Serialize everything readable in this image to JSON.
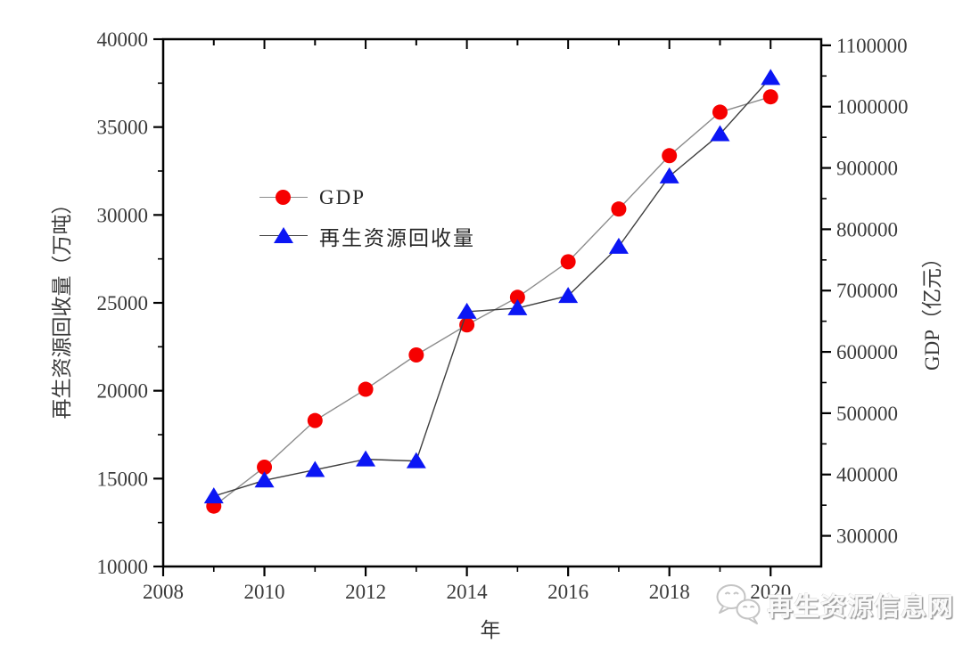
{
  "chart_data": {
    "type": "line",
    "x": [
      2009,
      2010,
      2011,
      2012,
      2013,
      2014,
      2015,
      2016,
      2017,
      2018,
      2019,
      2020
    ],
    "series": [
      {
        "name": "GDP",
        "axis": "right",
        "marker": "circle",
        "marker_color": "#f60000",
        "line_color": "#8c8c8c",
        "values": [
          348500,
          412000,
          488000,
          539000,
          595000,
          644000,
          689000,
          747000,
          833000,
          920000,
          991000,
          1016000
        ]
      },
      {
        "name": "再生资源回收量",
        "axis": "left",
        "marker": "triangle",
        "marker_color": "#0b16f4",
        "line_color": "#3f3f3f",
        "values": [
          14000,
          14900,
          15500,
          16100,
          16000,
          24500,
          24700,
          25400,
          28200,
          32200,
          34600,
          37800
        ]
      }
    ],
    "xlabel": "年",
    "ylabel_left": "再生资源回收量（万吨）",
    "ylabel_right": "GDP（亿元）",
    "x_range": [
      2008,
      2021
    ],
    "x_major_tick_step": 2,
    "x_minor_tick_step": 1,
    "x_tick_labels": [
      "2008",
      "2010",
      "2012",
      "2014",
      "2016",
      "2018",
      "2020"
    ],
    "left_range": [
      10000,
      40000
    ],
    "left_major_step": 5000,
    "left_minor_step": 2500,
    "left_tick_labels": [
      "10000",
      "15000",
      "20000",
      "25000",
      "30000",
      "35000",
      "40000"
    ],
    "right_range": [
      250000,
      1110000
    ],
    "right_major_step": 100000,
    "right_minor_step": 50000,
    "right_tick_labels": [
      "300000",
      "400000",
      "500000",
      "600000",
      "700000",
      "800000",
      "900000",
      "1000000",
      "1100000"
    ],
    "grid": false,
    "legend_position": "inside-upper-left",
    "axis_color": "#000000",
    "tick_label_color": "#3a3a3a"
  },
  "axes": {
    "left": {
      "title": "再生资源回收量（万吨）"
    },
    "right": {
      "title": "GDP（亿元）"
    },
    "bottom": {
      "title": "年"
    }
  },
  "legend": {
    "items": [
      {
        "label": "GDP"
      },
      {
        "label": "再生资源回收量"
      }
    ]
  },
  "watermark": {
    "icon": "wechat-icon",
    "text": "再生资源信息网"
  }
}
